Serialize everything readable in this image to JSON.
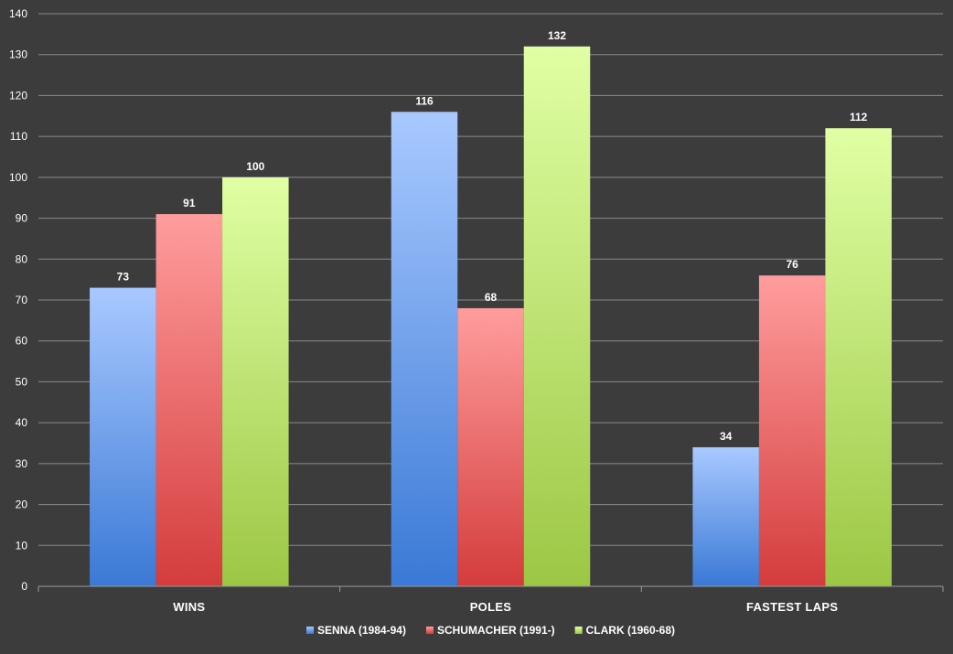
{
  "chart_data": {
    "type": "bar",
    "categories": [
      "WINS",
      "POLES",
      "FASTEST LAPS"
    ],
    "series": [
      {
        "name": "SENNA (1984-94)",
        "values": [
          73,
          116,
          34
        ],
        "color_light": "#a9c9ff",
        "color_dark": "#3a79d6"
      },
      {
        "name": "SCHUMACHER (1991-)",
        "values": [
          91,
          68,
          76
        ],
        "color_light": "#ff9d9d",
        "color_dark": "#d43c3c"
      },
      {
        "name": "CLARK (1960-68)",
        "values": [
          100,
          132,
          112
        ],
        "color_light": "#e0ffa4",
        "color_dark": "#9cc744"
      }
    ],
    "yticks": [
      0,
      10,
      20,
      30,
      40,
      50,
      60,
      70,
      80,
      90,
      100,
      110,
      120,
      130,
      140
    ],
    "ylim": [
      0,
      140
    ],
    "grid": true,
    "legend_position": "bottom",
    "title": "",
    "xlabel": "",
    "ylabel": ""
  },
  "colors": {
    "background": "#3c3c3c",
    "gridline": "#8a8a8a",
    "axis": "#9a9a9a",
    "text": "#ffffff"
  }
}
